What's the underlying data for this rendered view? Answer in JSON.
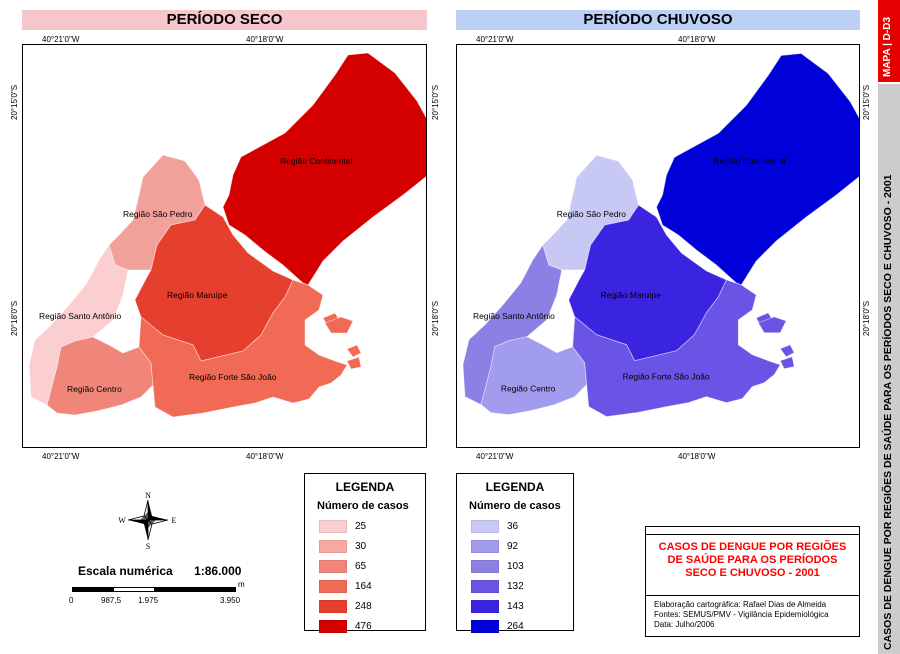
{
  "maps": {
    "dry": {
      "title": "PERÍODO SECO",
      "title_bg": "#f7c6cc",
      "lon_labels": [
        "40°21'0\"W",
        "40°18'0\"W"
      ],
      "lat_labels": [
        "20°15'0\"S",
        "20°18'0\"S"
      ],
      "regions": {
        "continental": {
          "label": "Região Continental",
          "color": "#d40000"
        },
        "sao_pedro": {
          "label": "Região São Pedro",
          "color": "#f2a19a"
        },
        "santo_antonio": {
          "label": "Região Santo Antônio",
          "color": "#fbcfcf"
        },
        "maruipe": {
          "label": "Região Maruípe",
          "color": "#e53f2e"
        },
        "centro": {
          "label": "Região Centro",
          "color": "#f0867a"
        },
        "forte": {
          "label": "Região Forte São João",
          "color": "#f06a55"
        }
      }
    },
    "wet": {
      "title": "PERÍODO CHUVOSO",
      "title_bg": "#bcd0f5",
      "lon_labels": [
        "40°21'0\"W",
        "40°18'0\"W"
      ],
      "lat_labels": [
        "20°15'0\"S",
        "20°18'0\"S"
      ],
      "regions": {
        "continental": {
          "label": "Região Continental",
          "color": "#0000d8"
        },
        "sao_pedro": {
          "label": "Região São Pedro",
          "color": "#c8c8f4"
        },
        "santo_antonio": {
          "label": "Região Santo Antônio",
          "color": "#8c80e4"
        },
        "maruipe": {
          "label": "Região Maruípe",
          "color": "#3b24e0"
        },
        "centro": {
          "label": "Região Centro",
          "color": "#a29cee"
        },
        "forte": {
          "label": "Região Forte São João",
          "color": "#6a54e6"
        }
      }
    }
  },
  "legend_dry": {
    "title": "LEGENDA",
    "subtitle": "Número de casos",
    "items": [
      {
        "value": "25",
        "color": "#fbcfcf"
      },
      {
        "value": "30",
        "color": "#f7aaa4"
      },
      {
        "value": "65",
        "color": "#f0867a"
      },
      {
        "value": "164",
        "color": "#f06a55"
      },
      {
        "value": "248",
        "color": "#e53f2e"
      },
      {
        "value": "476",
        "color": "#d40000"
      }
    ]
  },
  "legend_wet": {
    "title": "LEGENDA",
    "subtitle": "Número de casos",
    "items": [
      {
        "value": "36",
        "color": "#c8c8f4"
      },
      {
        "value": "92",
        "color": "#a29cee"
      },
      {
        "value": "103",
        "color": "#8c80e4"
      },
      {
        "value": "132",
        "color": "#6a54e6"
      },
      {
        "value": "143",
        "color": "#3b24e0"
      },
      {
        "value": "264",
        "color": "#0000d8"
      }
    ]
  },
  "compass": {
    "n": "N",
    "s": "S",
    "e": "E",
    "w": "W"
  },
  "scale": {
    "label": "Escala numérica",
    "value": "1:86.000",
    "unit": "m",
    "ticks": [
      "0",
      "987,5",
      "1.975",
      "3.950"
    ]
  },
  "info": {
    "title": "CASOS DE DENGUE POR REGIÕES DE SAÚDE PARA OS PERÍODOS SECO E CHUVOSO - 2001",
    "title_color": "#ff0000",
    "credits": [
      "Elaboração cartográfica: Rafael Dias de Almeida",
      "Fontes: SEMUS/PMV - Vigilância Epidemiológica",
      "Data: Julho/2006"
    ]
  },
  "side": {
    "map_id": "MAPA | D-D3",
    "map_id_bg": "#e40000",
    "vertical_title": "CASOS DE DENGUE POR REGIÕES DE SAÚDE PARA OS PERÍODOS SECO E CHUVOSO - 2001"
  }
}
